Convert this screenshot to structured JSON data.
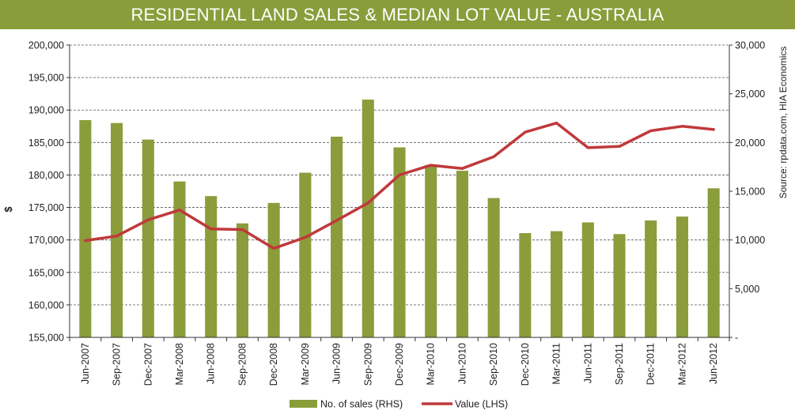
{
  "chart_data": {
    "type": "bar+line",
    "title": "RESIDENTIAL LAND SALES & MEDIAN LOT VALUE - AUSTRALIA",
    "categories": [
      "Jun-2007",
      "Sep-2007",
      "Dec-2007",
      "Mar-2008",
      "Jun-2008",
      "Sep-2008",
      "Dec-2008",
      "Mar-2009",
      "Jun-2009",
      "Sep-2009",
      "Dec-2009",
      "Mar-2010",
      "Jun-2010",
      "Sep-2010",
      "Dec-2010",
      "Mar-2011",
      "Jun-2011",
      "Sep-2011",
      "Dec-2011",
      "Mar-2012",
      "Jun-2012"
    ],
    "series": [
      {
        "name": "No. of sales (RHS)",
        "type": "bar",
        "axis": "right",
        "color": "#8a9d3a",
        "values": [
          22300,
          22000,
          20300,
          16000,
          14500,
          11700,
          13800,
          16900,
          20600,
          24400,
          19500,
          17700,
          17100,
          14300,
          10700,
          10900,
          11800,
          10600,
          12000,
          12400,
          15300
        ]
      },
      {
        "name": "Value (LHS)",
        "type": "line",
        "axis": "left",
        "color": "#c0393b",
        "values": [
          169900,
          170600,
          173100,
          174600,
          171700,
          171600,
          168700,
          170400,
          173000,
          175700,
          180000,
          181500,
          181000,
          182800,
          186600,
          188000,
          184200,
          184400,
          186800,
          187500,
          187000
        ]
      }
    ],
    "ylabel": "$",
    "y_left": {
      "min": 155000,
      "max": 200000,
      "step": 5000,
      "tick_labels": [
        "155,000",
        "160,000",
        "165,000",
        "170,000",
        "175,000",
        "180,000",
        "185,000",
        "190,000",
        "195,000",
        "200,000"
      ]
    },
    "y_right": {
      "min": 0,
      "max": 30000,
      "step": 5000,
      "tick_labels": [
        "-",
        "5,000",
        "10,000",
        "15,000",
        "20,000",
        "25,000",
        "30,000"
      ]
    },
    "gridlines": true,
    "legend": {
      "position": "bottom",
      "entries": [
        "No. of sales (RHS)",
        "Value (LHS)"
      ]
    },
    "annotation": "Source: rpdata.com, HIA Economics"
  },
  "colors": {
    "title_bg": "#8a9d3a",
    "title_text": "#ffffff"
  }
}
